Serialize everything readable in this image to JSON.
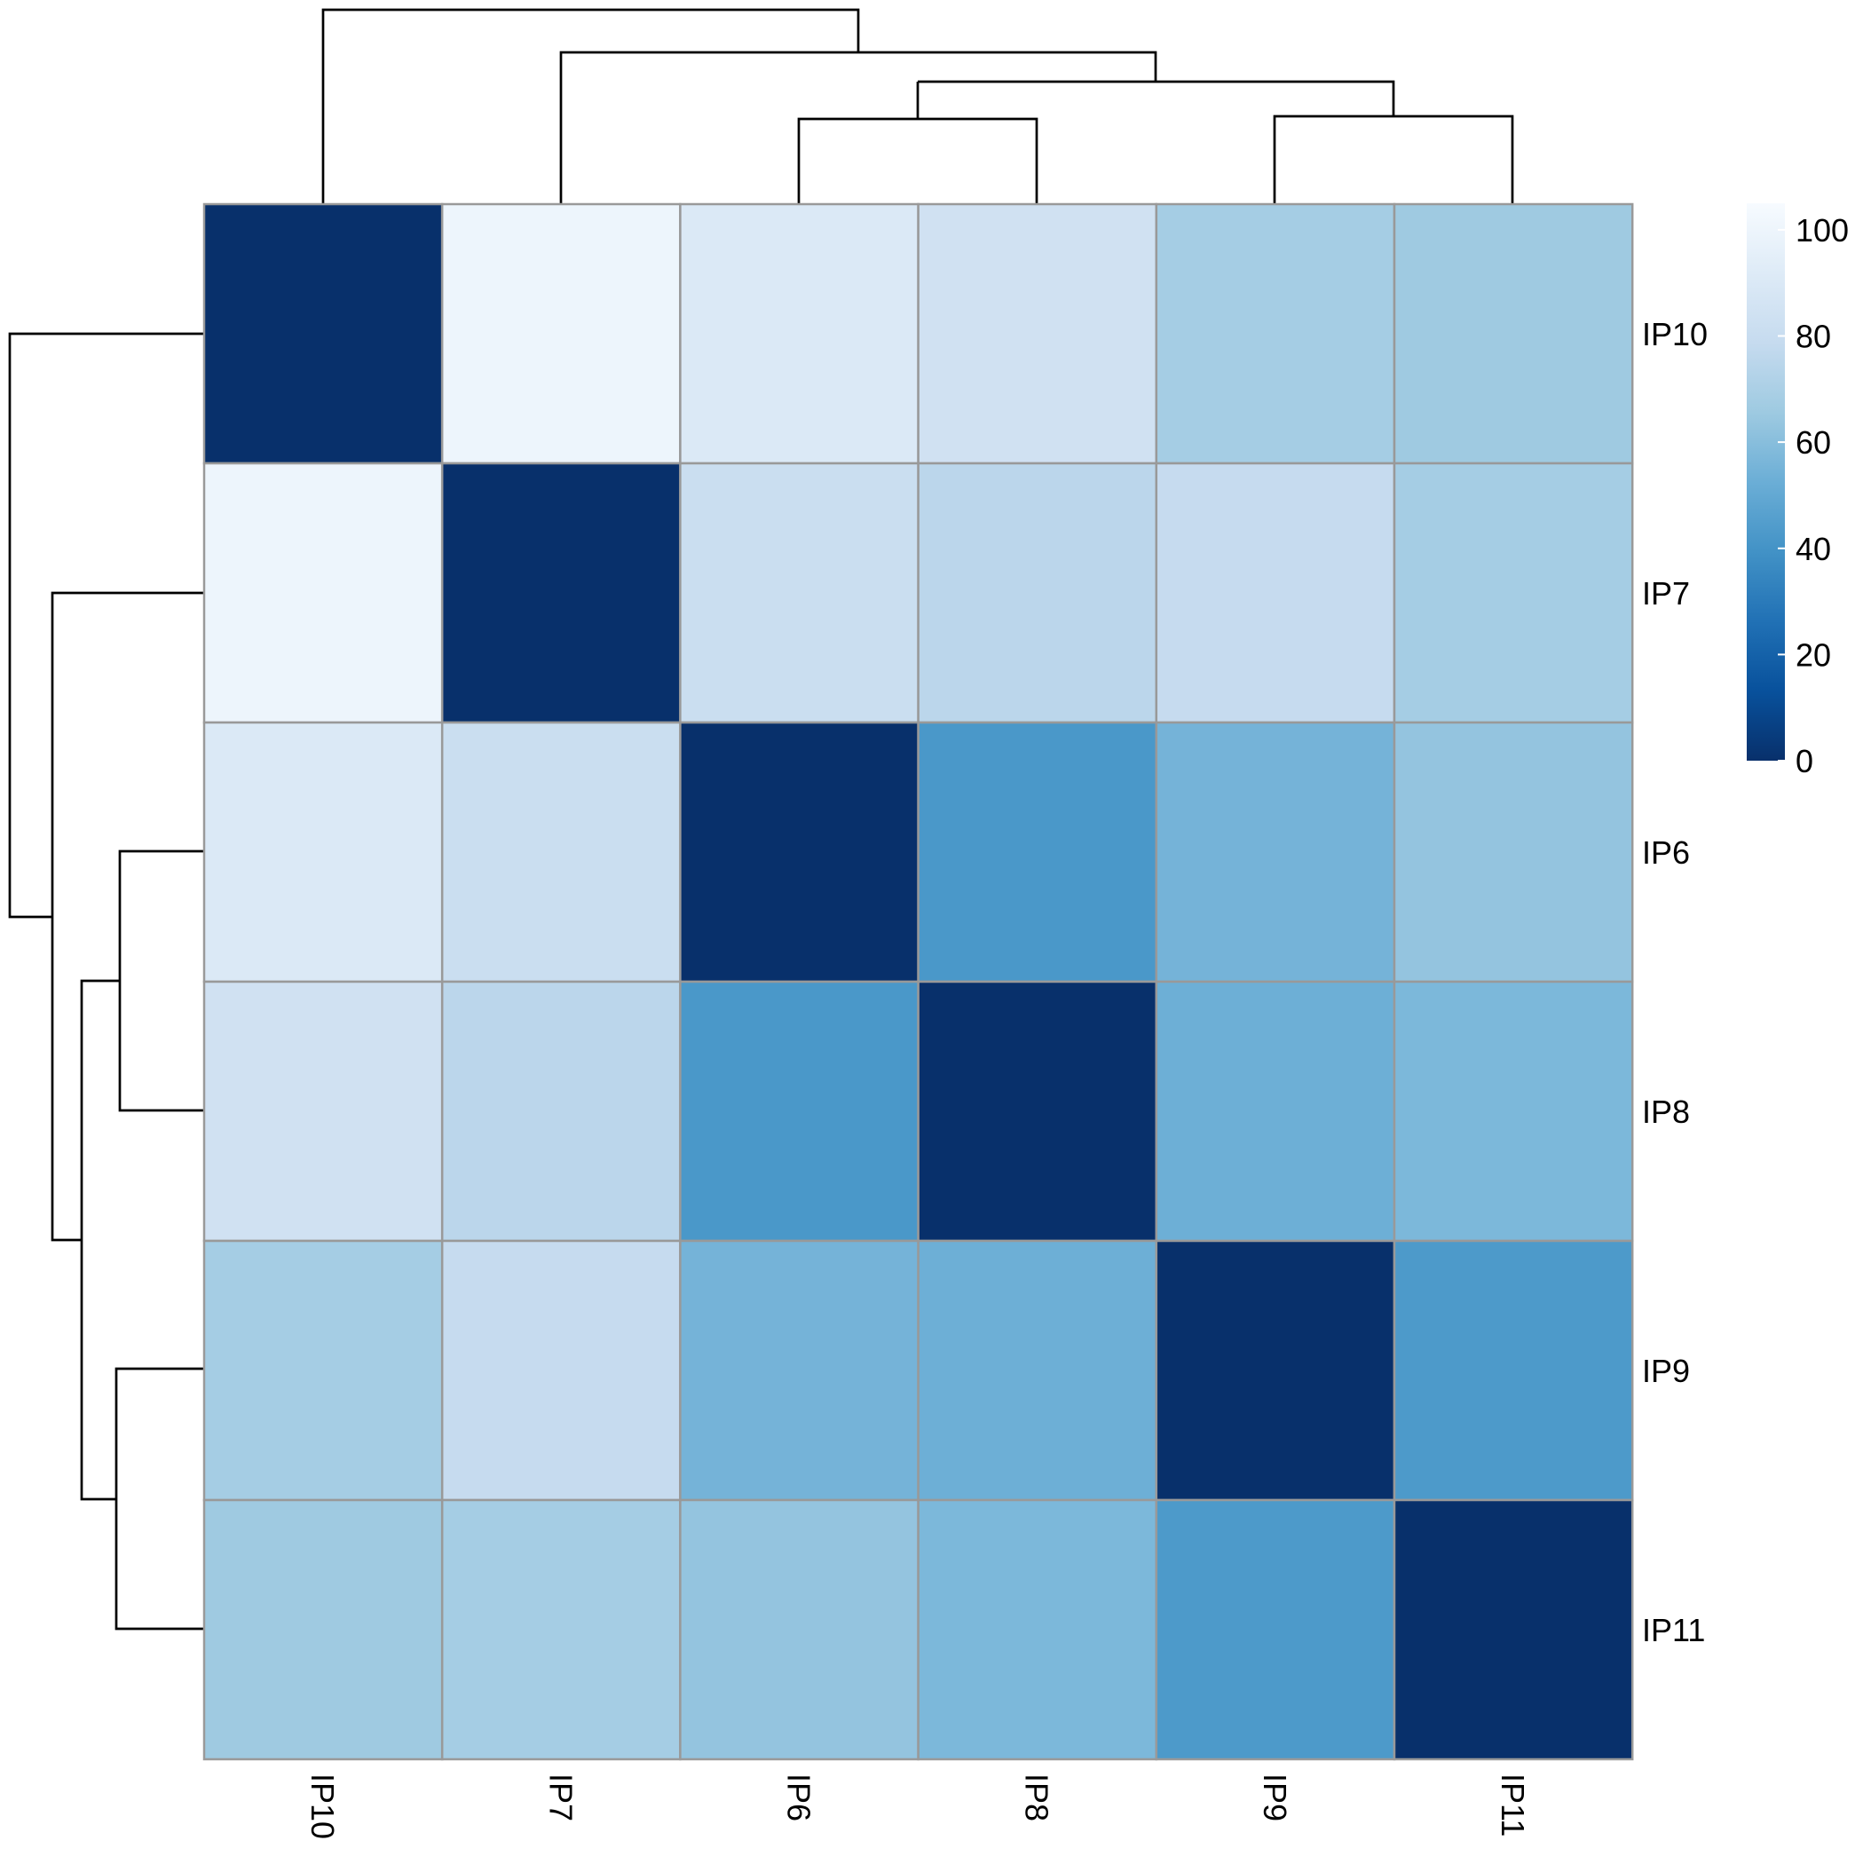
{
  "chart_data": {
    "type": "heatmap",
    "title": "",
    "xlabel": "",
    "ylabel": "",
    "rows": [
      "IP10",
      "IP7",
      "IP6",
      "IP8",
      "IP9",
      "IP11"
    ],
    "columns": [
      "IP10",
      "IP7",
      "IP6",
      "IP8",
      "IP9",
      "IP11"
    ],
    "values": [
      [
        0,
        100,
        90,
        84,
        68,
        66
      ],
      [
        100,
        0,
        81,
        75,
        79,
        68
      ],
      [
        90,
        81,
        0,
        42,
        55,
        63
      ],
      [
        84,
        75,
        42,
        0,
        53,
        57
      ],
      [
        68,
        79,
        55,
        53,
        0,
        43
      ],
      [
        66,
        68,
        63,
        57,
        43,
        0
      ]
    ],
    "color_scale": {
      "min": 0,
      "max": 105,
      "ticks": [
        0,
        20,
        40,
        60,
        80,
        100
      ],
      "stops": [
        "#08306b",
        "#08519c",
        "#2171b5",
        "#4292c6",
        "#6baed6",
        "#9ecae1",
        "#c6dbef",
        "#deebf7",
        "#f7fbff"
      ]
    },
    "cell_border_color": "#999999",
    "legend_position": "right",
    "dendrograms": [
      "top",
      "left"
    ]
  }
}
